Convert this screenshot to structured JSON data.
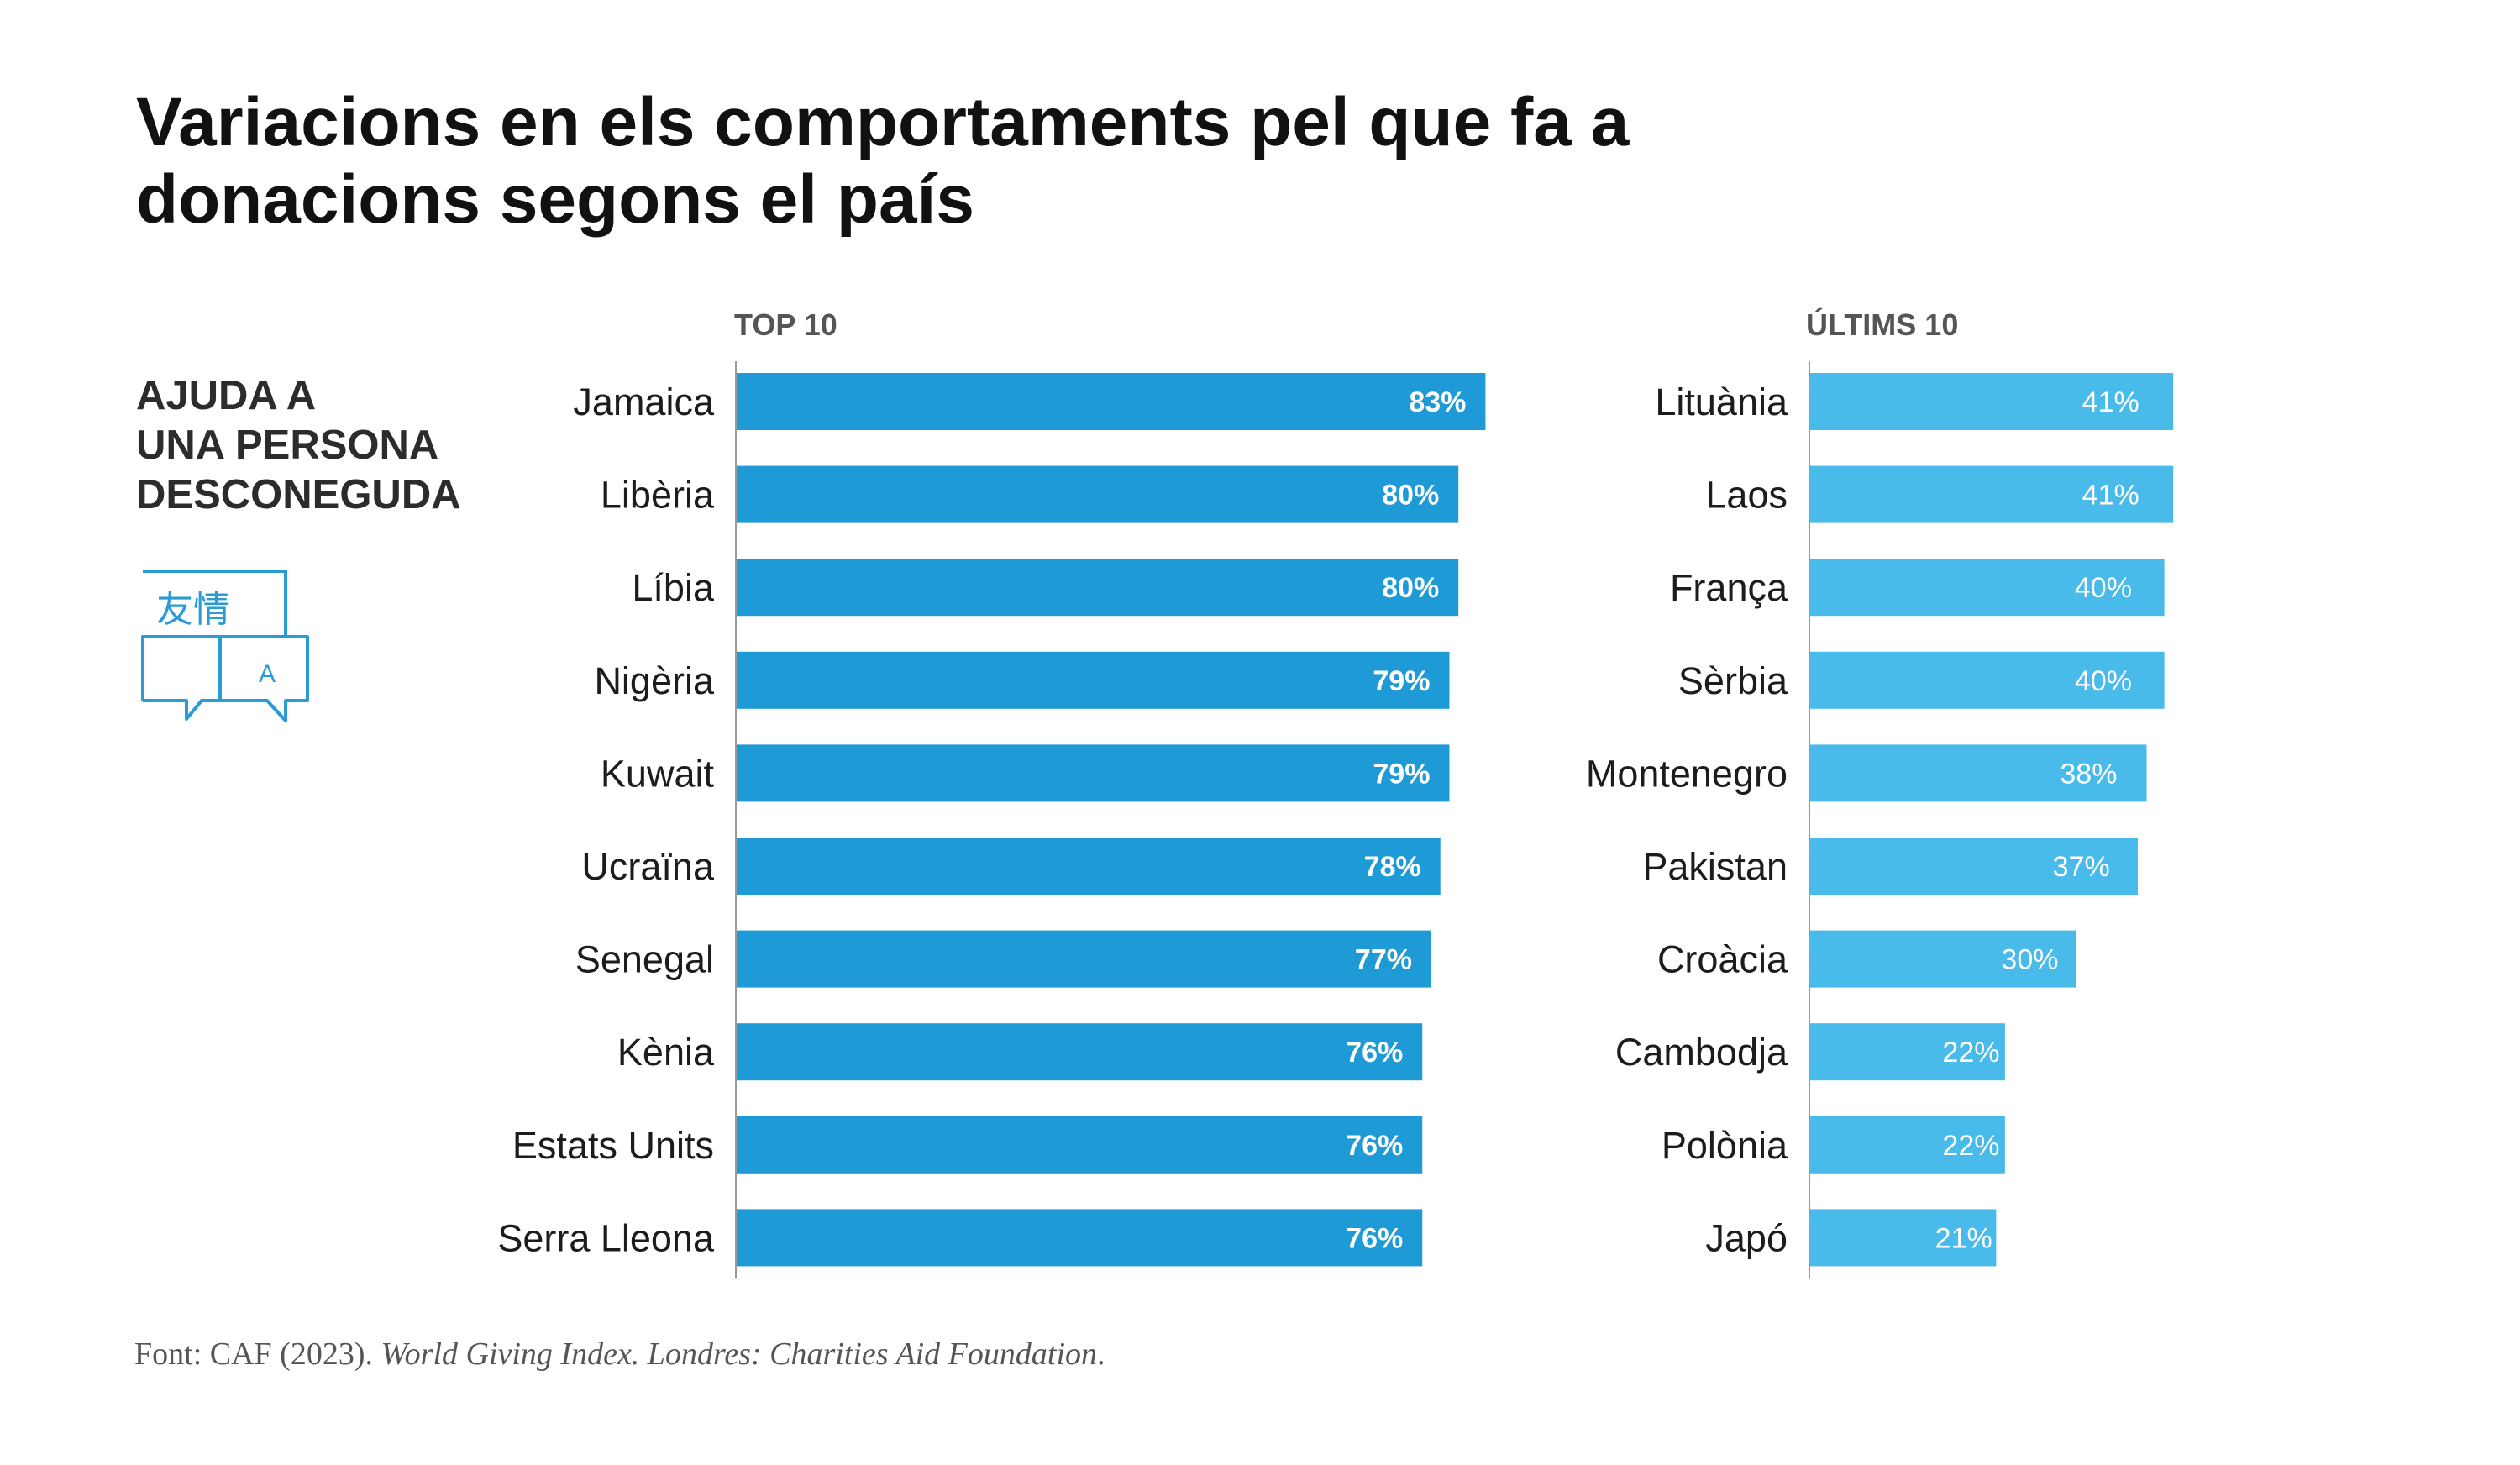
{
  "title": "Variacions en els comportaments pel que fa a donacions segons el país",
  "metric_label": "AJUDA A\nUNA PERSONA\nDESCONEGUDA",
  "icon": {
    "name": "translation-speech-bubbles-icon",
    "glyph_zh": "友情",
    "glyph_latin": "A"
  },
  "colors": {
    "top": "#1e9ad6",
    "bottom": "#48bbea",
    "axis": "#9a9a9a",
    "bar_label": "#ffffff"
  },
  "chart_data": [
    {
      "type": "bar",
      "orientation": "horizontal",
      "title": "TOP 10",
      "categories": [
        "Jamaica",
        "Libèria",
        "Líbia",
        "Nigèria",
        "Kuwait",
        "Ucraïna",
        "Senegal",
        "Kènia",
        "Estats Units",
        "Serra Lleona"
      ],
      "values": [
        83,
        80,
        80,
        79,
        79,
        78,
        77,
        76,
        76,
        76
      ],
      "data_labels": [
        "83%",
        "80%",
        "80%",
        "79%",
        "79%",
        "78%",
        "77%",
        "76%",
        "76%",
        "76%"
      ],
      "unit": "%",
      "xlim": [
        0,
        100
      ],
      "grid": false
    },
    {
      "type": "bar",
      "orientation": "horizontal",
      "title": "ÚLTIMS 10",
      "categories": [
        "Lituània",
        "Laos",
        "França",
        "Sèrbia",
        "Montenegro",
        "Pakistan",
        "Croàcia",
        "Cambodja",
        "Polònia",
        "Japó"
      ],
      "values": [
        41,
        41,
        40,
        40,
        38,
        37,
        30,
        22,
        22,
        21
      ],
      "data_labels": [
        "41%",
        "41%",
        "40%",
        "40%",
        "38%",
        "37%",
        "30%",
        "22%",
        "22%",
        "21%"
      ],
      "unit": "%",
      "xlim": [
        0,
        100
      ],
      "grid": false
    }
  ],
  "source": {
    "prefix": "Font: CAF (2023). ",
    "italic": "World Giving Index. Londres: Charities Aid Foundation",
    "suffix": "."
  }
}
